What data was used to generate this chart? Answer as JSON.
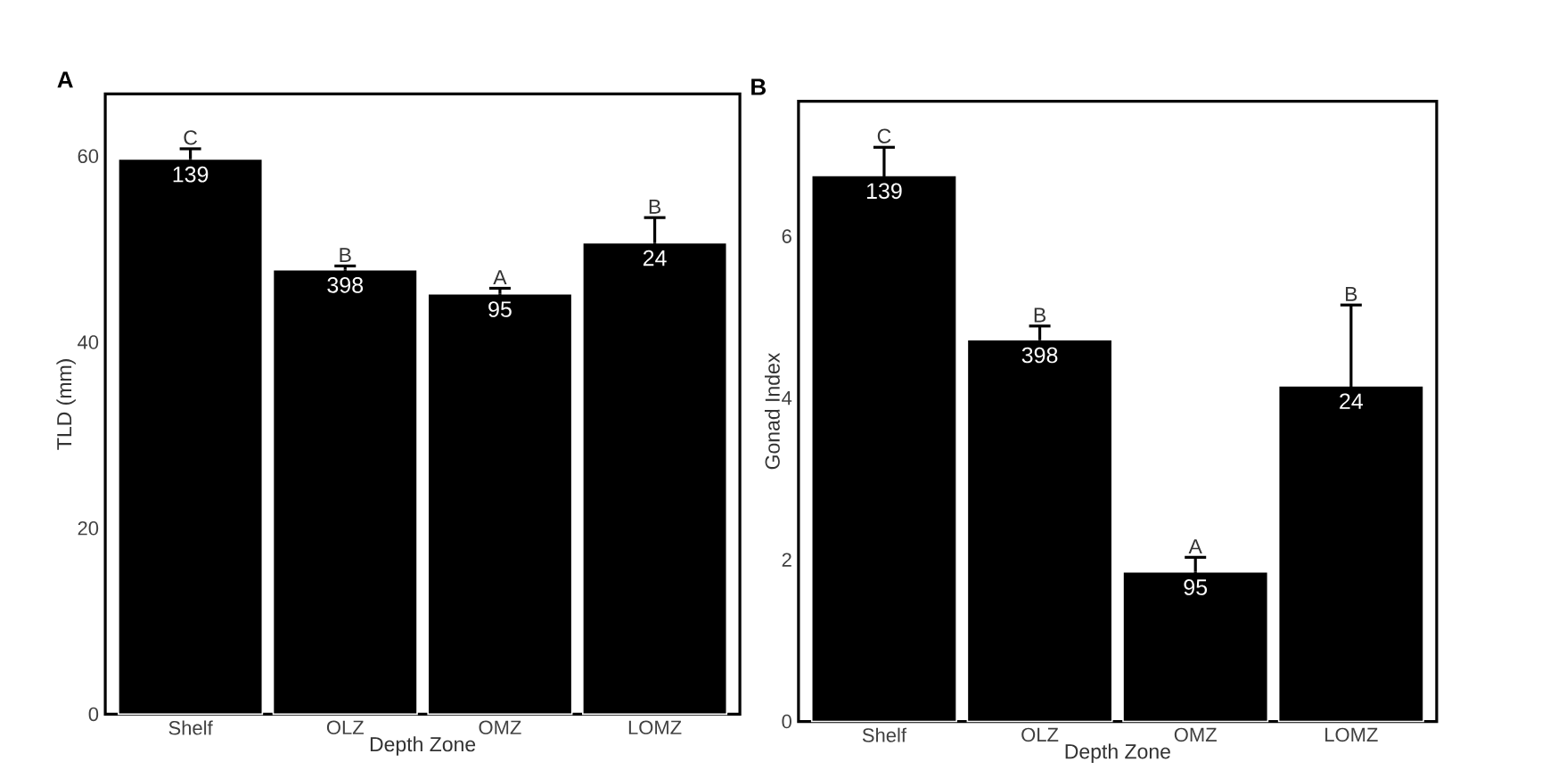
{
  "chart_data": [
    {
      "type": "bar",
      "title": "A",
      "xlabel": "Depth Zone",
      "ylabel": "TLD (mm)",
      "categories": [
        "Shelf",
        "OLZ",
        "OMZ",
        "LOMZ"
      ],
      "values": [
        59.7,
        47.8,
        45.2,
        50.7
      ],
      "errors": [
        1.1,
        0.4,
        0.6,
        2.7
      ],
      "color": "#000000",
      "ylim": [
        0,
        66.7
      ],
      "yticks": [
        0,
        20,
        40,
        60
      ],
      "annotations": [
        {
          "text": "C",
          "x": "Shelf",
          "y": 60.8
        },
        {
          "text": "B",
          "x": "OLZ",
          "y": 48.2
        },
        {
          "text": "A",
          "x": "OMZ",
          "y": 45.8
        },
        {
          "text": "B",
          "x": "LOMZ",
          "y": 53.4
        },
        {
          "text": "139",
          "x": "Shelf",
          "y": 59.7
        },
        {
          "text": "398",
          "x": "OLZ",
          "y": 47.8
        },
        {
          "text": "95",
          "x": "OMZ",
          "y": 45.2
        },
        {
          "text": "24",
          "x": "LOMZ",
          "y": 50.7
        }
      ]
    },
    {
      "type": "bar",
      "title": "B",
      "xlabel": "Depth Zone",
      "ylabel": "Gonad Index",
      "categories": [
        "Shelf",
        "OLZ",
        "OMZ",
        "LOMZ"
      ],
      "values": [
        6.75,
        4.72,
        1.85,
        4.15
      ],
      "errors": [
        0.35,
        0.17,
        0.18,
        1.0
      ],
      "color": "#000000",
      "ylim": [
        0,
        7.67
      ],
      "yticks": [
        0,
        2,
        4,
        6
      ],
      "annotations": [
        {
          "text": "C",
          "x": "Shelf",
          "y": 7.1
        },
        {
          "text": "B",
          "x": "OLZ",
          "y": 4.89
        },
        {
          "text": "A",
          "x": "OMZ",
          "y": 2.03
        },
        {
          "text": "B",
          "x": "LOMZ",
          "y": 5.15
        },
        {
          "text": "139",
          "x": "Shelf",
          "y": 6.75
        },
        {
          "text": "398",
          "x": "OLZ",
          "y": 4.72
        },
        {
          "text": "95",
          "x": "OMZ",
          "y": 1.85
        },
        {
          "text": "24",
          "x": "LOMZ",
          "y": 4.15
        }
      ]
    }
  ]
}
